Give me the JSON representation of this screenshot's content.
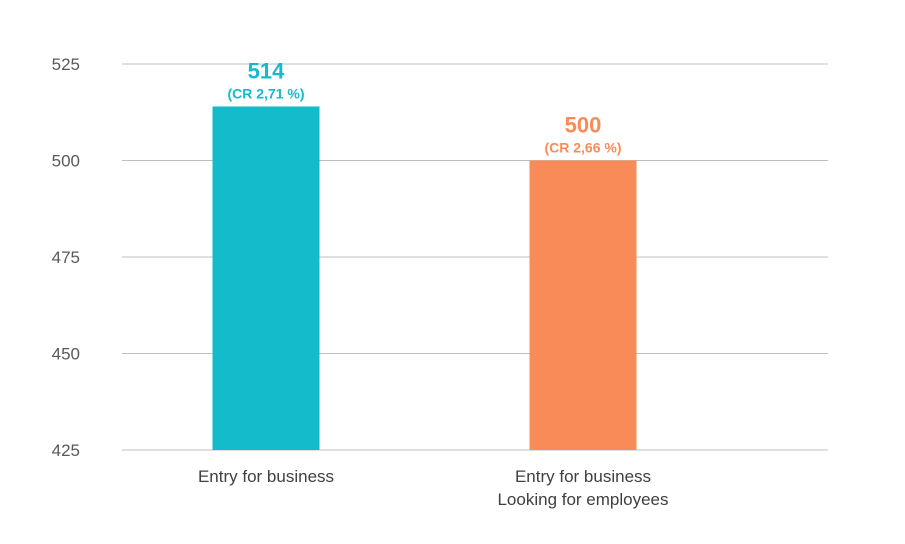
{
  "chart_data": {
    "type": "bar",
    "title": "",
    "xlabel": "",
    "ylabel": "",
    "ylim": [
      425,
      525
    ],
    "yticks": [
      425,
      450,
      475,
      500,
      525
    ],
    "grid": true,
    "categories": [
      [
        "Entry for business"
      ],
      [
        "Entry for business",
        "Looking for employees"
      ]
    ],
    "values": [
      514,
      500
    ],
    "value_labels": [
      "514",
      "500"
    ],
    "cr_labels": [
      "(CR 2,71 %)",
      "(CR 2,66 %)"
    ],
    "colors": [
      "#14bccb",
      "#f98b59"
    ]
  }
}
